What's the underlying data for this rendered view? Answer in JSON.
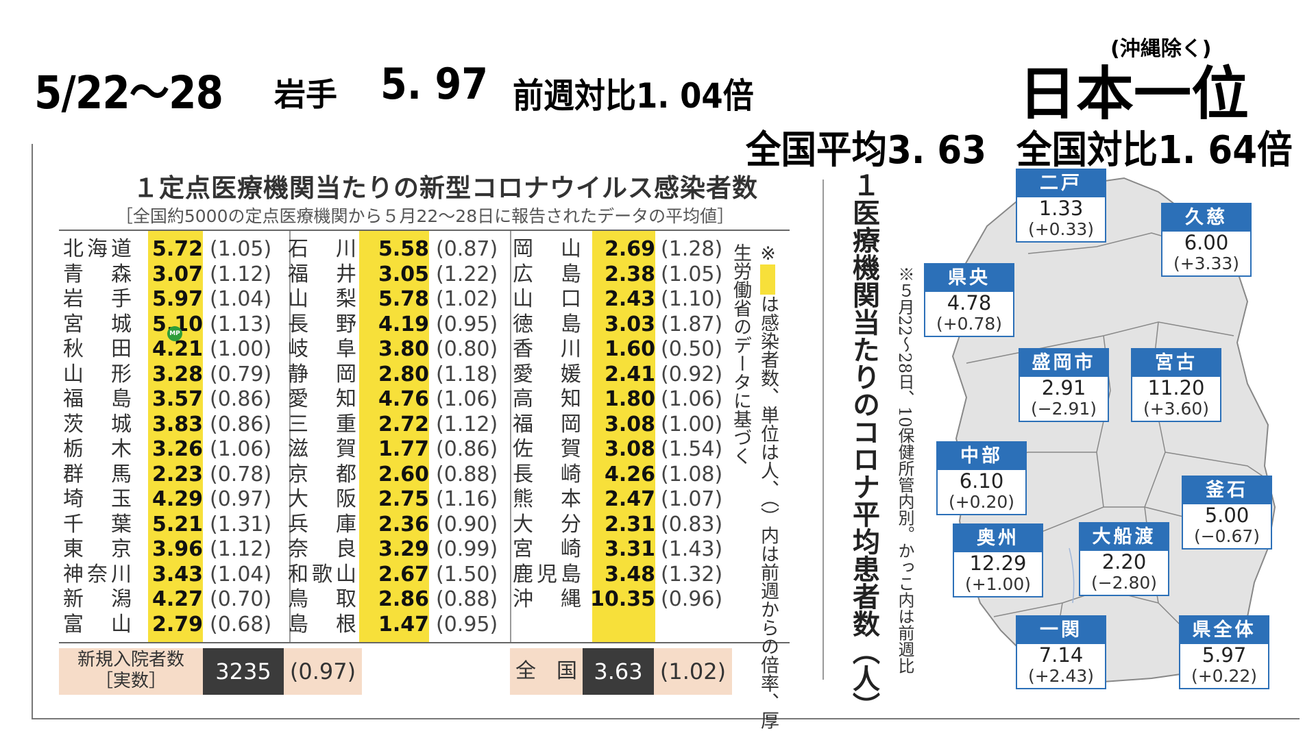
{
  "headline": {
    "dates": "5/22～28",
    "prefecture": "岩手",
    "value": "5. 97",
    "week_ratio": "前週対比1. 04倍",
    "excl_note": "(沖縄除く)",
    "rank": "日本一位",
    "national_avg": "全国平均3. 63",
    "national_ratio": "全国対比1. 64倍"
  },
  "table": {
    "title": "１定点医療機関当たりの新型コロナウイルス感染者数",
    "subtitle": "［全国約5000の定点医療機関から５月22～28日に報告されたデータの平均値］",
    "columns": [
      [
        {
          "name": "北海道",
          "value": "5.72",
          "ratio": "(1.05)"
        },
        {
          "name": "青森",
          "value": "3.07",
          "ratio": "(1.12)"
        },
        {
          "name": "岩手",
          "value": "5.97",
          "ratio": "(1.04)"
        },
        {
          "name": "宮城",
          "value": "5.10",
          "ratio": "(1.13)"
        },
        {
          "name": "秋田",
          "value": "4.21",
          "ratio": "(1.00)"
        },
        {
          "name": "山形",
          "value": "3.28",
          "ratio": "(0.79)"
        },
        {
          "name": "福島",
          "value": "3.57",
          "ratio": "(0.86)"
        },
        {
          "name": "茨城",
          "value": "3.83",
          "ratio": "(0.86)"
        },
        {
          "name": "栃木",
          "value": "3.26",
          "ratio": "(1.06)"
        },
        {
          "name": "群馬",
          "value": "2.23",
          "ratio": "(0.78)"
        },
        {
          "name": "埼玉",
          "value": "4.29",
          "ratio": "(0.97)"
        },
        {
          "name": "千葉",
          "value": "5.21",
          "ratio": "(1.31)"
        },
        {
          "name": "東京",
          "value": "3.96",
          "ratio": "(1.12)"
        },
        {
          "name": "神奈川",
          "value": "3.43",
          "ratio": "(1.04)"
        },
        {
          "name": "新潟",
          "value": "4.27",
          "ratio": "(0.70)"
        },
        {
          "name": "富山",
          "value": "2.79",
          "ratio": "(0.68)"
        }
      ],
      [
        {
          "name": "石川",
          "value": "5.58",
          "ratio": "(0.87)"
        },
        {
          "name": "福井",
          "value": "3.05",
          "ratio": "(1.22)"
        },
        {
          "name": "山梨",
          "value": "5.78",
          "ratio": "(1.02)"
        },
        {
          "name": "長野",
          "value": "4.19",
          "ratio": "(0.95)"
        },
        {
          "name": "岐阜",
          "value": "3.80",
          "ratio": "(0.80)"
        },
        {
          "name": "静岡",
          "value": "2.80",
          "ratio": "(1.18)"
        },
        {
          "name": "愛知",
          "value": "4.76",
          "ratio": "(1.06)"
        },
        {
          "name": "三重",
          "value": "2.72",
          "ratio": "(1.12)"
        },
        {
          "name": "滋賀",
          "value": "1.77",
          "ratio": "(0.86)"
        },
        {
          "name": "京都",
          "value": "2.60",
          "ratio": "(0.88)"
        },
        {
          "name": "大阪",
          "value": "2.75",
          "ratio": "(1.16)"
        },
        {
          "name": "兵庫",
          "value": "2.36",
          "ratio": "(0.90)"
        },
        {
          "name": "奈良",
          "value": "3.29",
          "ratio": "(0.99)"
        },
        {
          "name": "和歌山",
          "value": "2.67",
          "ratio": "(1.50)"
        },
        {
          "name": "鳥取",
          "value": "2.86",
          "ratio": "(0.88)"
        },
        {
          "name": "島根",
          "value": "1.47",
          "ratio": "(0.95)"
        }
      ],
      [
        {
          "name": "岡山",
          "value": "2.69",
          "ratio": "(1.28)"
        },
        {
          "name": "広島",
          "value": "2.38",
          "ratio": "(1.05)"
        },
        {
          "name": "山口",
          "value": "2.43",
          "ratio": "(1.10)"
        },
        {
          "name": "徳島",
          "value": "3.03",
          "ratio": "(1.87)"
        },
        {
          "name": "香川",
          "value": "1.60",
          "ratio": "(0.50)"
        },
        {
          "name": "愛媛",
          "value": "2.41",
          "ratio": "(0.92)"
        },
        {
          "name": "高知",
          "value": "1.80",
          "ratio": "(1.06)"
        },
        {
          "name": "福岡",
          "value": "3.08",
          "ratio": "(1.00)"
        },
        {
          "name": "佐賀",
          "value": "3.08",
          "ratio": "(1.54)"
        },
        {
          "name": "長崎",
          "value": "4.26",
          "ratio": "(1.08)"
        },
        {
          "name": "熊本",
          "value": "2.47",
          "ratio": "(1.07)"
        },
        {
          "name": "大分",
          "value": "2.31",
          "ratio": "(0.83)"
        },
        {
          "name": "宮崎",
          "value": "3.31",
          "ratio": "(1.43)"
        },
        {
          "name": "鹿児島",
          "value": "3.48",
          "ratio": "(1.32)"
        },
        {
          "name": "沖縄",
          "value": "10.35",
          "ratio": "(0.96)"
        }
      ]
    ],
    "note_mark": "※",
    "note_text": "は感染者数、単位は人、（）内は前週からの倍率、厚生労働省のデータに基づく",
    "admissions_label_1": "新規入院者数",
    "admissions_label_2": "［実数］",
    "admissions_value": "3235",
    "admissions_ratio": "(0.97)",
    "national_label": "全　国",
    "national_value": "3.63",
    "national_ratio": "(1.02)",
    "badge": "MP"
  },
  "map": {
    "title": "１医療機関当たりのコロナ平均患者数（人）",
    "note": "※５月22～28日、10保健所管内別。かっこ内は前週比",
    "regions": [
      {
        "name": "二戸",
        "value": "1.33",
        "diff": "(+0.33)"
      },
      {
        "name": "久慈",
        "value": "6.00",
        "diff": "(+3.33)"
      },
      {
        "name": "県央",
        "value": "4.78",
        "diff": "(+0.78)"
      },
      {
        "name": "盛岡市",
        "value": "2.91",
        "diff": "(−2.91)"
      },
      {
        "name": "宮古",
        "value": "11.20",
        "diff": "(+3.60)"
      },
      {
        "name": "中部",
        "value": "6.10",
        "diff": "(+0.20)"
      },
      {
        "name": "釜石",
        "value": "5.00",
        "diff": "(−0.67)"
      },
      {
        "name": "奥州",
        "value": "12.29",
        "diff": "(+1.00)"
      },
      {
        "name": "大船渡",
        "value": "2.20",
        "diff": "(−2.80)"
      },
      {
        "name": "一関",
        "value": "7.14",
        "diff": "(+2.43)"
      },
      {
        "name": "県全体",
        "value": "5.97",
        "diff": "(+0.22)"
      }
    ]
  },
  "colors": {
    "highlight_yellow": "#f7e03a",
    "region_blue": "#2c70b8",
    "summary_peach": "#f6dcc8",
    "summary_dark": "#3b3b3b",
    "map_fill": "#e3e3e3"
  }
}
